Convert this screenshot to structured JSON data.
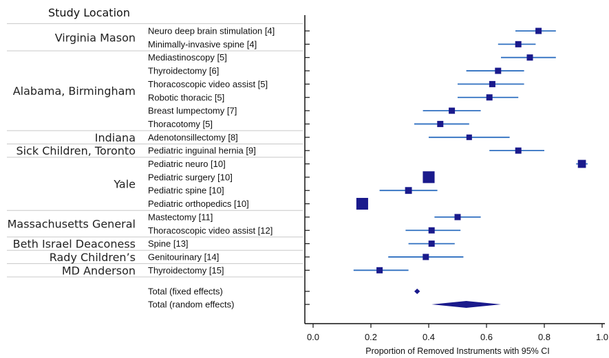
{
  "chart_data": {
    "type": "forest",
    "header": "Study Location",
    "xlabel": "Proportion of Removed Instruments with 95% CI",
    "xlim": [
      0,
      1
    ],
    "xticks": [
      "0.0",
      "0.2",
      "0.4",
      "0.6",
      "0.8",
      "1.0"
    ],
    "colors": {
      "marker": "#1a1a8c",
      "ci": "#2e6fc0",
      "axis": "#111111",
      "grid": "#c8c8c8"
    },
    "groups": [
      {
        "location": "Virginia Mason",
        "rows": [
          0,
          1
        ]
      },
      {
        "location": "Alabama, Birmingham",
        "rows": [
          2,
          7
        ]
      },
      {
        "location": "Indiana",
        "rows": [
          8,
          8
        ]
      },
      {
        "location": "Sick Children, Toronto",
        "rows": [
          9,
          9
        ]
      },
      {
        "location": "Yale",
        "rows": [
          10,
          13
        ]
      },
      {
        "location": "Massachusetts General",
        "rows": [
          14,
          15
        ]
      },
      {
        "location": "Beth Israel Deaconess",
        "rows": [
          16,
          16
        ]
      },
      {
        "location": "Rady Children’s",
        "rows": [
          17,
          17
        ]
      },
      {
        "location": "MD Anderson",
        "rows": [
          18,
          18
        ]
      }
    ],
    "studies": [
      {
        "label": "Neuro deep brain stimulation [4]",
        "estimate": 0.78,
        "ci": [
          0.7,
          0.84
        ],
        "weight": 1.0
      },
      {
        "label": "Minimally-invasive spine [4]",
        "estimate": 0.71,
        "ci": [
          0.64,
          0.77
        ],
        "weight": 1.0
      },
      {
        "label": "Mediastinoscopy [5]",
        "estimate": 0.75,
        "ci": [
          0.65,
          0.84
        ],
        "weight": 1.0
      },
      {
        "label": "Thyroidectomy [6]",
        "estimate": 0.64,
        "ci": [
          0.53,
          0.73
        ],
        "weight": 1.0
      },
      {
        "label": "Thoracoscopic video assist [5]",
        "estimate": 0.62,
        "ci": [
          0.5,
          0.73
        ],
        "weight": 1.0
      },
      {
        "label": "Robotic thoracic [5]",
        "estimate": 0.61,
        "ci": [
          0.5,
          0.71
        ],
        "weight": 1.0
      },
      {
        "label": "Breast lumpectomy [7]",
        "estimate": 0.48,
        "ci": [
          0.38,
          0.58
        ],
        "weight": 1.0
      },
      {
        "label": "Thoracotomy [5]",
        "estimate": 0.44,
        "ci": [
          0.35,
          0.54
        ],
        "weight": 1.0
      },
      {
        "label": "Adenotonsillectomy [8]",
        "estimate": 0.54,
        "ci": [
          0.4,
          0.68
        ],
        "weight": 0.9
      },
      {
        "label": "Pediatric inguinal hernia [9]",
        "estimate": 0.71,
        "ci": [
          0.61,
          0.8
        ],
        "weight": 1.0
      },
      {
        "label": "Pediatric neuro [10]",
        "estimate": 0.93,
        "ci": [
          0.91,
          0.95
        ],
        "weight": 1.3
      },
      {
        "label": "Pediatric surgery [10]",
        "estimate": 0.4,
        "ci": [
          0.38,
          0.42
        ],
        "weight": 1.9
      },
      {
        "label": "Pediatric spine [10]",
        "estimate": 0.33,
        "ci": [
          0.23,
          0.43
        ],
        "weight": 1.1
      },
      {
        "label": "Pediatric orthopedics [10]",
        "estimate": 0.17,
        "ci": [
          0.15,
          0.19
        ],
        "weight": 1.9
      },
      {
        "label": "Mastectomy [11]",
        "estimate": 0.5,
        "ci": [
          0.42,
          0.58
        ],
        "weight": 1.0
      },
      {
        "label": "Thoracoscopic video assist [12]",
        "estimate": 0.41,
        "ci": [
          0.32,
          0.51
        ],
        "weight": 1.0
      },
      {
        "label": "Spine [13]",
        "estimate": 0.41,
        "ci": [
          0.33,
          0.49
        ],
        "weight": 1.0
      },
      {
        "label": "Genitourinary [14]",
        "estimate": 0.39,
        "ci": [
          0.26,
          0.52
        ],
        "weight": 1.0
      },
      {
        "label": "Thyroidectomy [15]",
        "estimate": 0.23,
        "ci": [
          0.14,
          0.33
        ],
        "weight": 1.0
      }
    ],
    "totals": [
      {
        "label": "Total (fixed effects)",
        "estimate": 0.36,
        "ci": [
          0.35,
          0.37
        ]
      },
      {
        "label": "Total (random effects)",
        "estimate": 0.53,
        "ci": [
          0.41,
          0.65
        ]
      }
    ]
  }
}
